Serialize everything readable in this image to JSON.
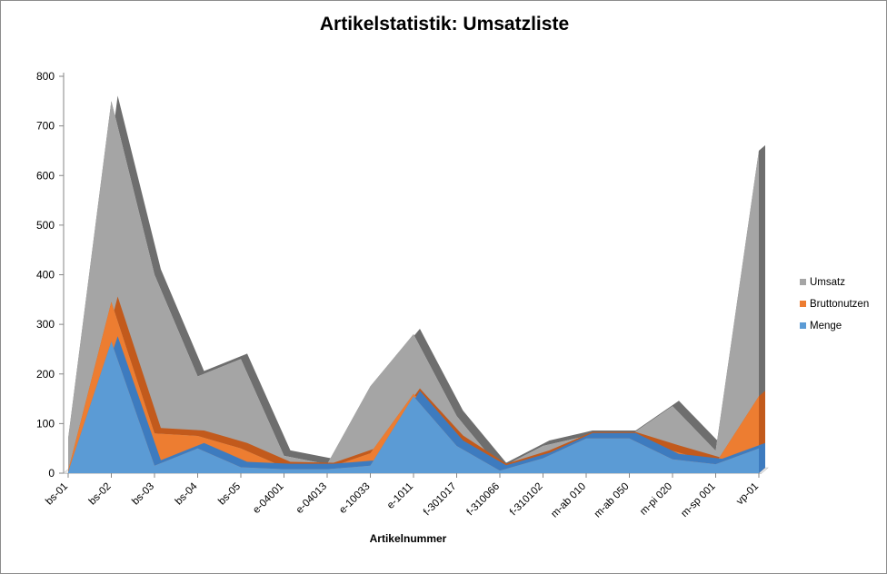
{
  "chart_data": {
    "type": "area",
    "title": "Artikelstatistik: Umsatzliste",
    "xlabel": "Artikelnummer",
    "ylabel": "",
    "ylim": [
      0,
      800
    ],
    "yticks": [
      0,
      100,
      200,
      300,
      400,
      500,
      600,
      700,
      800
    ],
    "categories": [
      "bs-01",
      "bs-02",
      "bs-03",
      "bs-04",
      "bs-05",
      "e-04001",
      "e-04013",
      "e-10033",
      "e-1011",
      "f-301017",
      "f-310066",
      "f-310102",
      "m-ab 010",
      "m-ab 050",
      "m-pi 020",
      "m-sp 001",
      "vp-01"
    ],
    "series": [
      {
        "name": "Menge",
        "color": "#5b9bd5",
        "values": [
          2,
          265,
          15,
          50,
          12,
          8,
          8,
          15,
          155,
          55,
          5,
          30,
          70,
          70,
          28,
          18,
          50
        ]
      },
      {
        "name": "Bruttonutzen",
        "color": "#ed7d31",
        "values": [
          5,
          345,
          80,
          75,
          50,
          12,
          10,
          40,
          160,
          65,
          8,
          35,
          72,
          72,
          45,
          20,
          155
        ]
      },
      {
        "name": "Umsatz",
        "color": "#a5a5a5",
        "values": [
          70,
          750,
          400,
          195,
          230,
          35,
          18,
          175,
          280,
          115,
          10,
          55,
          75,
          75,
          135,
          45,
          650
        ]
      }
    ],
    "legend": "right",
    "grid": false,
    "style": "3d-area"
  }
}
